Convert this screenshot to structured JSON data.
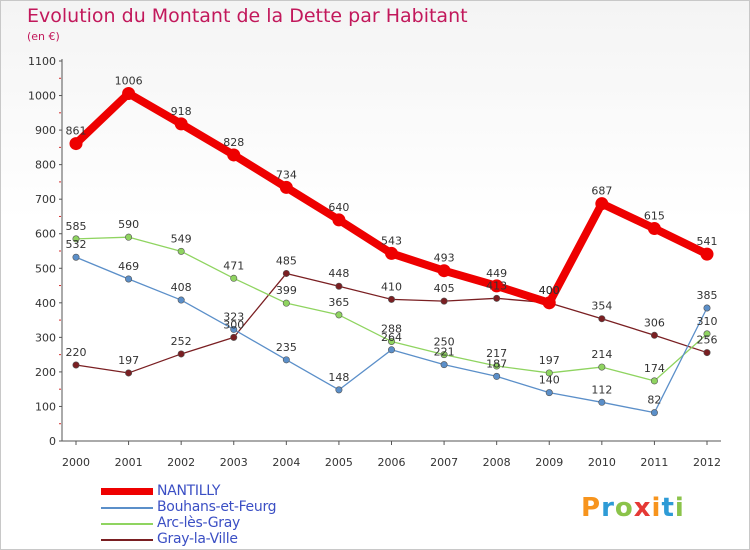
{
  "header": {
    "title": "Evolution du Montant de la Dette par Habitant",
    "subtitle": "(en €)"
  },
  "logo": {
    "text": "Proxiti",
    "letters": [
      {
        "ch": "P",
        "color": "#f7941d"
      },
      {
        "ch": "r",
        "color": "#2e9bd6"
      },
      {
        "ch": "o",
        "color": "#8bc34a"
      },
      {
        "ch": "x",
        "color": "#e53935"
      },
      {
        "ch": "i",
        "color": "#f7941d"
      },
      {
        "ch": "t",
        "color": "#2e9bd6"
      },
      {
        "ch": "i",
        "color": "#8bc34a"
      }
    ]
  },
  "chart_data": {
    "type": "line",
    "title": "Evolution du Montant de la Dette par Habitant",
    "ylabel": "(en €)",
    "xlabel": "",
    "x": [
      "2000",
      "2001",
      "2002",
      "2003",
      "2004",
      "2005",
      "2006",
      "2007",
      "2008",
      "2009",
      "2010",
      "2011",
      "2012"
    ],
    "ylim": [
      0,
      1100
    ],
    "yticks": [
      0,
      100,
      200,
      300,
      400,
      500,
      600,
      700,
      800,
      900,
      1000,
      1100
    ],
    "grid": false,
    "legend_position": "bottom-left",
    "series": [
      {
        "name": "NANTILLY",
        "color": "#ee0000",
        "values": [
          861,
          1006,
          918,
          828,
          734,
          640,
          543,
          493,
          449,
          400,
          687,
          615,
          541
        ]
      },
      {
        "name": "Bouhans-et-Feurg",
        "color": "#5b8fc9",
        "values": [
          532,
          469,
          408,
          323,
          235,
          148,
          264,
          221,
          187,
          140,
          112,
          82,
          385
        ]
      },
      {
        "name": "Arc-lès-Gray",
        "color": "#8fd460",
        "values": [
          585,
          590,
          549,
          471,
          399,
          365,
          288,
          250,
          217,
          197,
          214,
          174,
          310
        ]
      },
      {
        "name": "Gray-la-Ville",
        "color": "#7a1f22",
        "values": [
          220,
          197,
          252,
          300,
          485,
          448,
          410,
          405,
          413,
          400,
          354,
          306,
          256
        ]
      }
    ]
  }
}
